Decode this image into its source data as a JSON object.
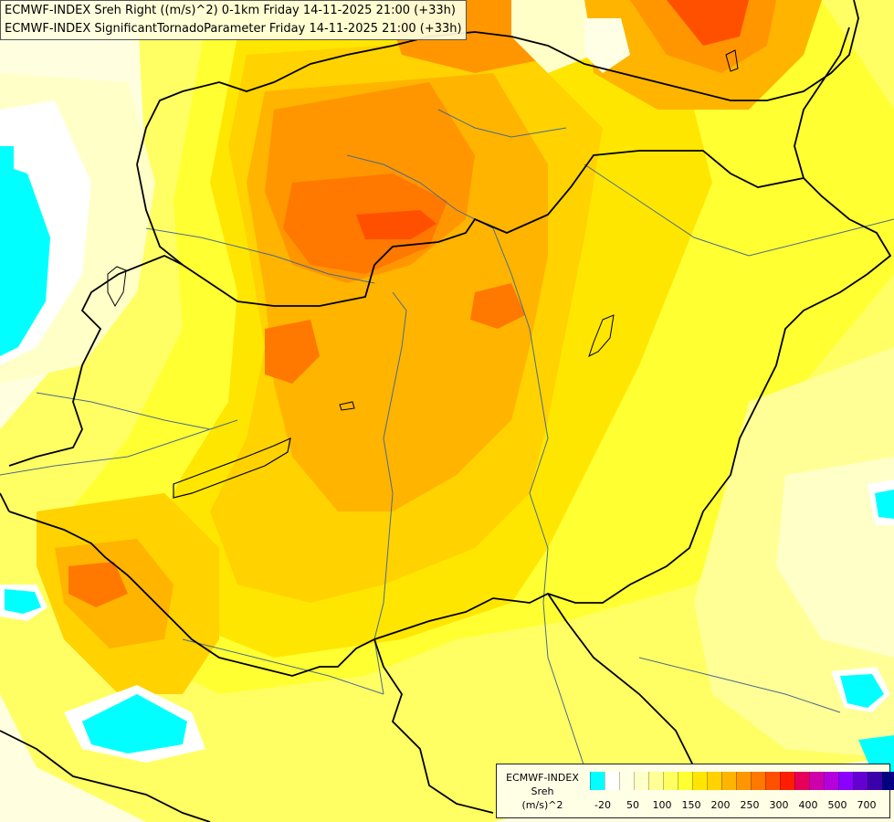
{
  "header": {
    "line1": "ECMWF-INDEX Sreh Right ((m/s)^2) 0-1km Friday 14-11-2025 21:00 (+33h)",
    "line2": "ECMWF-INDEX SignificantTornadoParameter Friday 14-11-2025 21:00 (+33h)"
  },
  "legend": {
    "line1": "ECMWF-INDEX",
    "line2": "Sreh",
    "line3": "(m/s)^2",
    "colors": [
      "#00ffff",
      "#ffffff",
      "#ffffe6",
      "#ffffc8",
      "#ffff96",
      "#ffff64",
      "#ffff32",
      "#ffe600",
      "#ffd200",
      "#ffb400",
      "#ff9600",
      "#ff7800",
      "#ff5000",
      "#ff1e00",
      "#e6005a",
      "#cd00aa",
      "#b400dc",
      "#8c00ff",
      "#6400d2",
      "#3c00aa",
      "#000080"
    ],
    "ticks": [
      "-20",
      "50",
      "100",
      "150",
      "200",
      "250",
      "300",
      "400",
      "500",
      "700"
    ]
  },
  "map_colors": {
    "background": "#ffffe0",
    "light_yellow": "#ffff96",
    "yellow": "#ffff32",
    "gold": "#ffd200",
    "orange_light": "#ffb400",
    "orange": "#ff9600",
    "dark_orange": "#ff7800",
    "red_orange": "#ff5000",
    "cyan": "#00ffff",
    "white": "#ffffff",
    "borders": "#000000",
    "rivers": "#4a6b8a"
  }
}
